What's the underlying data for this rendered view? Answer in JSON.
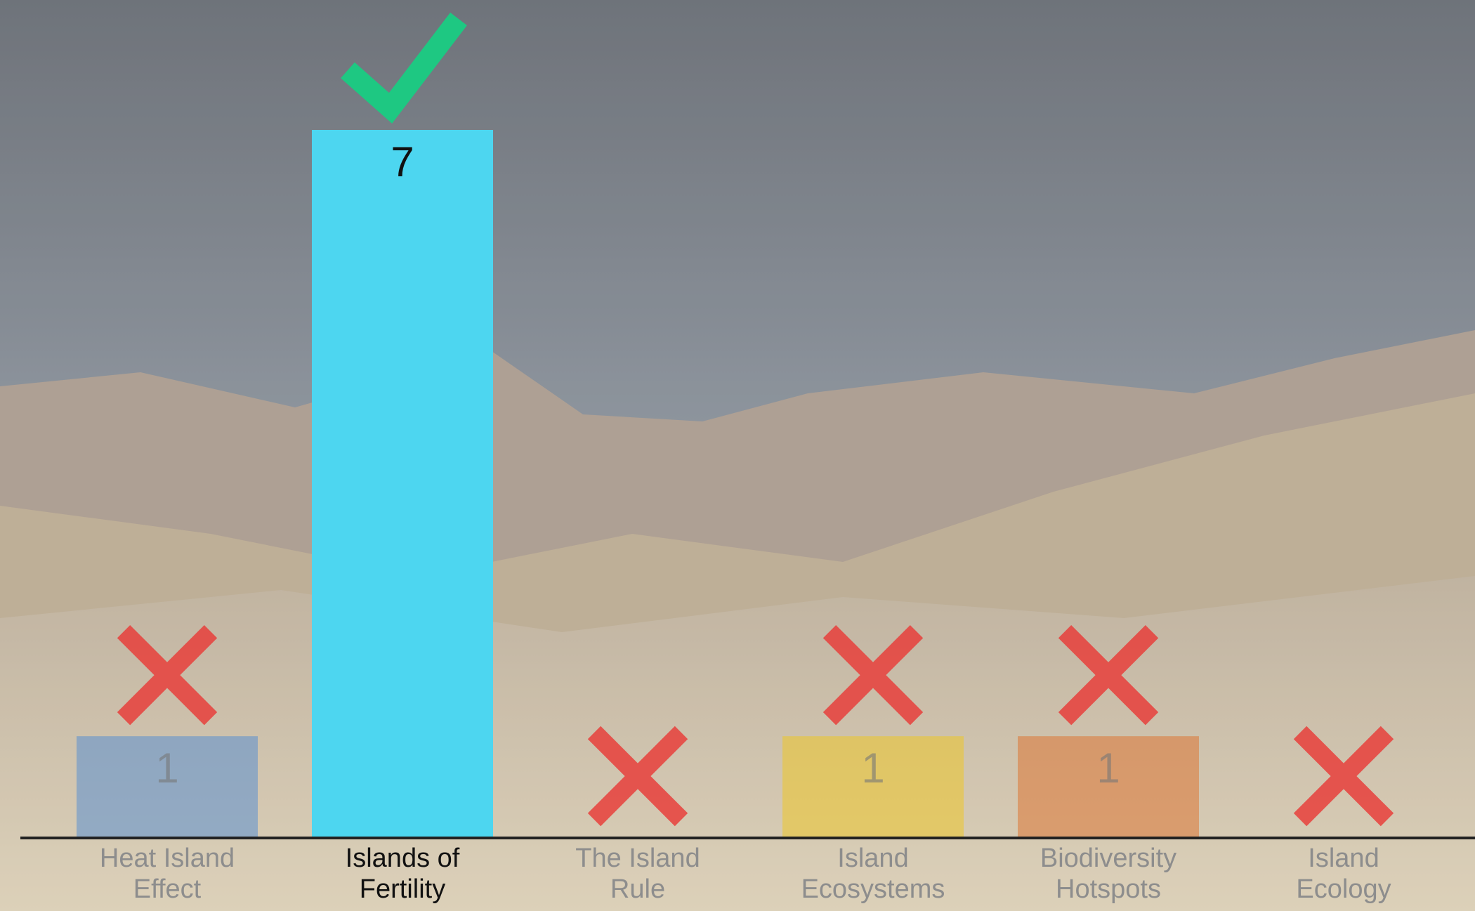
{
  "chart_data": {
    "type": "bar",
    "categories": [
      "Heat Island Effect",
      "Islands of Fertility",
      "The Island Rule",
      "Island Ecosystems",
      "Biodiversity Hotspots",
      "Island Ecology"
    ],
    "values": [
      1,
      7,
      0,
      1,
      1,
      0
    ],
    "colors": [
      "#5b8fd0",
      "#4dd6f0",
      null,
      "#ecc62a",
      "#dd7634",
      null
    ],
    "correct": [
      false,
      true,
      false,
      false,
      false,
      false
    ]
  }
}
